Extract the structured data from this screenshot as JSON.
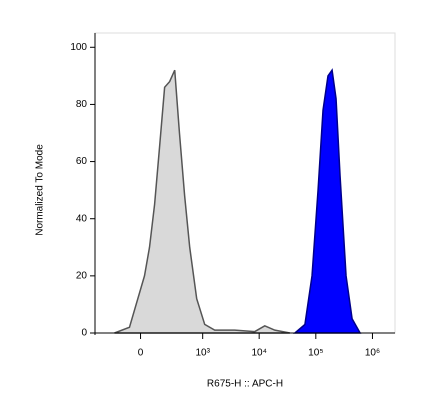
{
  "chart_data": {
    "type": "histogram-area",
    "x_label": "R675-H :: APC-H",
    "y_label": "Normalized To Mode",
    "xscale": "biexponential",
    "xlim": [
      -500,
      2500000
    ],
    "ylim": [
      0,
      105
    ],
    "xticks": [
      0,
      {
        "value": 1000,
        "label": "10³"
      },
      {
        "value": 10000,
        "label": "10⁴"
      },
      {
        "value": 100000,
        "label": "10⁵"
      },
      {
        "value": 1000000,
        "label": "10⁶"
      }
    ],
    "yticks": [
      0,
      20,
      40,
      60,
      80,
      100
    ],
    "series": [
      {
        "color": "#d9d9d9",
        "line_color": "#555555",
        "x": [
          -204,
          -75,
          26,
          60,
          97,
          137,
          184,
          238,
          303,
          375,
          470,
          583,
          781,
          1087,
          1639,
          3700,
          8370,
          12550,
          18900,
          34900
        ],
        "values": [
          0,
          2,
          20,
          30,
          45,
          65,
          86,
          88,
          92,
          70,
          48,
          30,
          12,
          3,
          1,
          1,
          0.5,
          2.5,
          1,
          0
        ]
      },
      {
        "color": "#0000ff",
        "line_color": "#00008b",
        "x": [
          42800,
          64200,
          85700,
          109500,
          134000,
          164000,
          193700,
          227700,
          268000,
          342000,
          437000,
          605000
        ],
        "values": [
          0,
          3,
          20,
          50,
          78,
          90,
          92,
          82,
          55,
          20,
          5,
          0
        ]
      }
    ]
  }
}
